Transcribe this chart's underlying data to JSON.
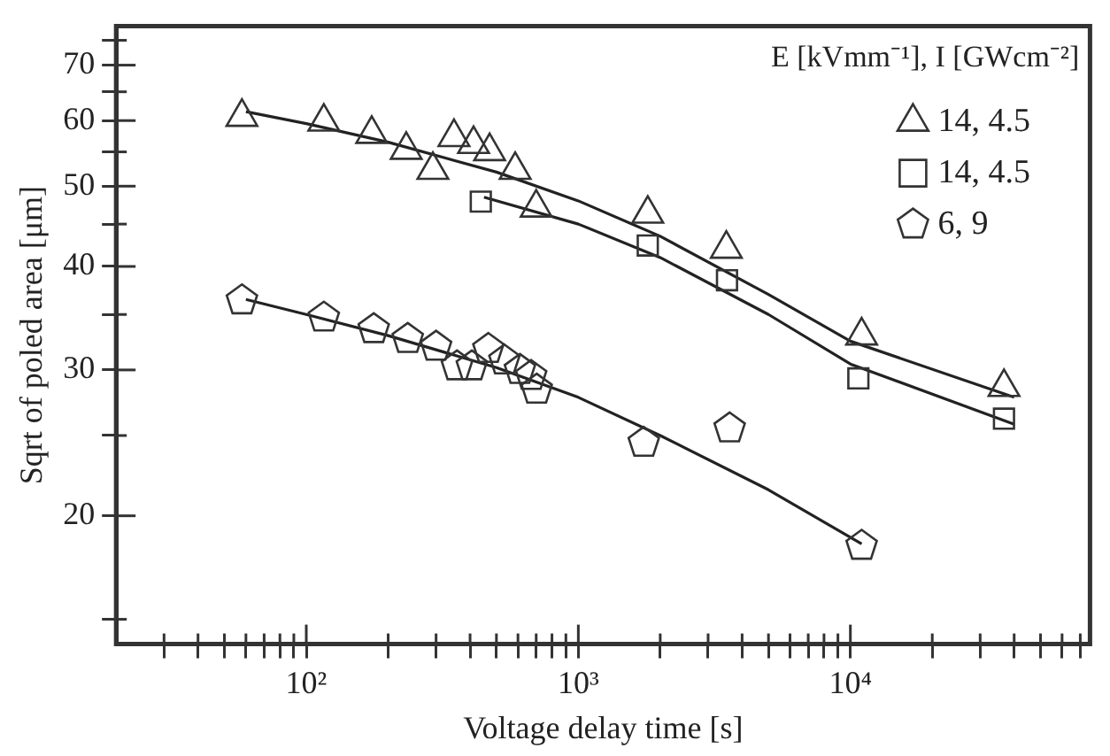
{
  "chart_data": {
    "type": "scatter",
    "xlabel": "Voltage delay time [s]",
    "ylabel": "Sqrt of poled area [μm]",
    "legend_title": "E [kVmm⁻¹], I [GWcm⁻²]",
    "log": "xy",
    "grid": false,
    "legend": "top right",
    "xlim": [
      20,
      76000
    ],
    "ylim": [
      14,
      78
    ],
    "xticks": [
      {
        "value": 30,
        "label": null
      },
      {
        "value": 40,
        "label": null
      },
      {
        "value": 50,
        "label": null
      },
      {
        "value": 60,
        "label": null
      },
      {
        "value": 70,
        "label": null
      },
      {
        "value": 80,
        "label": null
      },
      {
        "value": 90,
        "label": null
      },
      {
        "value": 100,
        "label": "10²"
      },
      {
        "value": 200,
        "label": null
      },
      {
        "value": 300,
        "label": null
      },
      {
        "value": 400,
        "label": null
      },
      {
        "value": 500,
        "label": null
      },
      {
        "value": 600,
        "label": null
      },
      {
        "value": 700,
        "label": null
      },
      {
        "value": 800,
        "label": null
      },
      {
        "value": 900,
        "label": null
      },
      {
        "value": 1000,
        "label": "10³"
      },
      {
        "value": 2000,
        "label": null
      },
      {
        "value": 3000,
        "label": null
      },
      {
        "value": 4000,
        "label": null
      },
      {
        "value": 5000,
        "label": null
      },
      {
        "value": 6000,
        "label": null
      },
      {
        "value": 7000,
        "label": null
      },
      {
        "value": 8000,
        "label": null
      },
      {
        "value": 9000,
        "label": null
      },
      {
        "value": 10000,
        "label": "10⁴"
      },
      {
        "value": 20000,
        "label": null
      },
      {
        "value": 30000,
        "label": null
      },
      {
        "value": 40000,
        "label": null
      },
      {
        "value": 50000,
        "label": null
      },
      {
        "value": 60000,
        "label": null
      },
      {
        "value": 70000,
        "label": null
      }
    ],
    "yticks": [
      {
        "value": 15,
        "label": null
      },
      20,
      {
        "value": 25,
        "label": null
      },
      30,
      {
        "value": 35,
        "label": null
      },
      40,
      {
        "value": 45,
        "label": null
      },
      50,
      {
        "value": 55,
        "label": null
      },
      60,
      {
        "value": 65,
        "label": null
      },
      70,
      {
        "value": 75,
        "label": null
      }
    ],
    "series": [
      {
        "name": "14, 4.5",
        "type": "scatter",
        "marker": "triangle",
        "color": "#333333",
        "x": [
          58,
          116,
          174,
          233,
          292,
          349,
          412,
          472,
          586,
          700,
          1800,
          3500,
          11000,
          36700
        ],
        "values": [
          60.6,
          59.8,
          57.8,
          55.3,
          52.3,
          57.3,
          56.2,
          55.1,
          52.3,
          47.1,
          46.3,
          42,
          33,
          28.6
        ]
      },
      {
        "name": "14, 4.5",
        "type": "scatter",
        "marker": "square",
        "color": "#333333",
        "x": [
          438,
          1800,
          3520,
          10700,
          36700
        ],
        "values": [
          47.9,
          42.4,
          38.5,
          29.3,
          26.2
        ]
      },
      {
        "name": "6, 9",
        "type": "scatter",
        "color": "#333333",
        "x": [
          58,
          116,
          177,
          236,
          300,
          358,
          406,
          467,
          535,
          610,
          671,
          703,
          1740,
          3600,
          11000
        ],
        "values": [
          36.4,
          34.7,
          33.6,
          32.7,
          32,
          30.3,
          30.3,
          31.8,
          30.8,
          30,
          29.5,
          28.4,
          24.5,
          25.5,
          18.4
        ]
      },
      {
        "type": "line",
        "marker": "none",
        "color": "#222222",
        "x": [
          60,
          100,
          200,
          500,
          1000,
          2000,
          5000,
          10000,
          40000
        ],
        "values": [
          61.5,
          59.5,
          56.5,
          52,
          48,
          43.5,
          37,
          32.5,
          27.8
        ]
      },
      {
        "type": "line",
        "marker": "none",
        "color": "#222222",
        "x": [
          450,
          1000,
          2000,
          5000,
          10000,
          40000
        ],
        "values": [
          48.5,
          45,
          41,
          35,
          30.5,
          25.8
        ]
      },
      {
        "type": "line",
        "marker": "none",
        "color": "#222222",
        "x": [
          60,
          100,
          200,
          500,
          1000,
          2000,
          5000,
          11000
        ],
        "values": [
          36.5,
          35,
          33,
          30.2,
          27.8,
          25,
          21.5,
          18.5
        ]
      }
    ]
  }
}
